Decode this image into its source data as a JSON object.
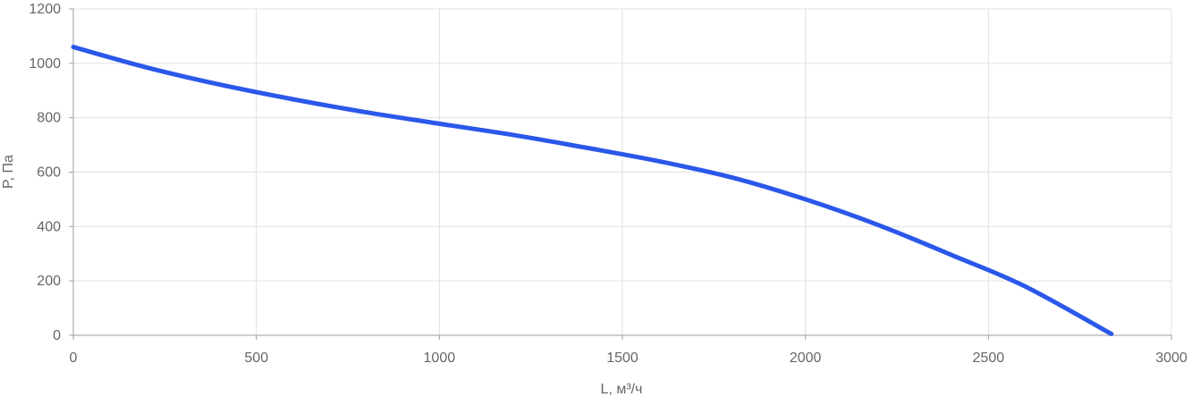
{
  "chart_data": {
    "type": "line",
    "xlabel": "L, м³/ч",
    "ylabel": "P, Па",
    "xlim": [
      0,
      3000
    ],
    "ylim": [
      0,
      1200
    ],
    "x_ticks": [
      0,
      500,
      1000,
      1500,
      2000,
      2500,
      3000
    ],
    "y_ticks": [
      0,
      200,
      400,
      600,
      800,
      1000,
      1200
    ],
    "x_tick_labels": [
      "0",
      "500",
      "1000",
      "1500",
      "2000",
      "2500",
      "3000"
    ],
    "y_tick_labels": [
      "0",
      "200",
      "400",
      "600",
      "800",
      "1000",
      "1200"
    ],
    "grid": true,
    "series": [
      {
        "color": "#2b58ea",
        "x": [
          0,
          200,
          400,
          600,
          800,
          1000,
          1200,
          1400,
          1600,
          1800,
          2000,
          2200,
          2400,
          2600,
          2836
        ],
        "y": [
          1060,
          985,
          922,
          868,
          820,
          778,
          737,
          690,
          640,
          580,
          500,
          405,
          295,
          180,
          5
        ]
      }
    ]
  }
}
